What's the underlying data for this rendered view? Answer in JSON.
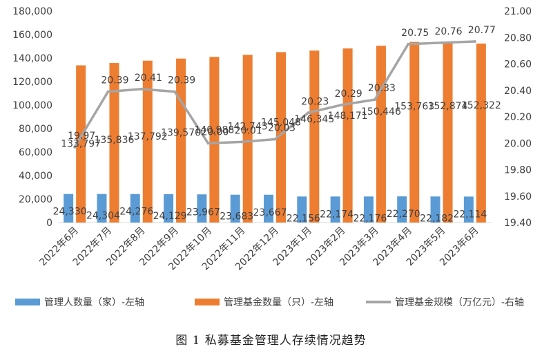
{
  "caption": "图 1  私募基金管理人存续情况趋势",
  "chart_data": {
    "type": "bar",
    "categories": [
      "2022年6月",
      "2022年7月",
      "2022年8月",
      "2022年9月",
      "2022年10月",
      "2022年11月",
      "2022年12月",
      "2023年1月",
      "2023年2月",
      "2023年3月",
      "2023年4月",
      "2023年5月",
      "2023年6月"
    ],
    "series": [
      {
        "name": "管理人数量（家）-左轴",
        "type": "bar",
        "axis": "left",
        "color": "#5B9BD5",
        "values": [
          24330,
          24304,
          24276,
          24129,
          23967,
          23683,
          23667,
          22156,
          22174,
          22176,
          22270,
          22182,
          22114
        ],
        "labels": [
          "24,330",
          "24,304",
          "24,276",
          "24,129",
          "23,967",
          "23,683",
          "23,667",
          "22,156",
          "22,174",
          "22,176",
          "22,270",
          "22,182",
          "22,114"
        ]
      },
      {
        "name": "管理基金数量（只）-左轴",
        "type": "bar",
        "axis": "left",
        "color": "#ED7D31",
        "values": [
          133797,
          135836,
          137792,
          139570,
          140988,
          142743,
          145048,
          146345,
          148171,
          150446,
          153763,
          152874,
          152322
        ],
        "labels": [
          "133,797",
          "135,836",
          "137,792",
          "139,570",
          "140,988",
          "142,743",
          "145,048",
          "146,345",
          "148,171",
          "150,446",
          "153,763",
          "152,874",
          "152,322"
        ]
      },
      {
        "name": "管理基金规模（万亿元）-右轴",
        "type": "line",
        "axis": "right",
        "color": "#A5A5A5",
        "values": [
          19.97,
          20.39,
          20.41,
          20.39,
          20.0,
          20.01,
          20.03,
          20.23,
          20.29,
          20.33,
          20.75,
          20.76,
          20.77
        ],
        "labels": [
          "19.97",
          "20.39",
          "20.41",
          "20.39",
          "20.00",
          "20.01",
          "20.03",
          "20.23",
          "20.29",
          "20.33",
          "20.75",
          "20.76",
          "20.77"
        ]
      }
    ],
    "left_axis": {
      "min": 0,
      "max": 180000,
      "step": 20000,
      "tick_labels": [
        "0",
        "20,000",
        "40,000",
        "60,000",
        "80,000",
        "100,000",
        "120,000",
        "140,000",
        "160,000",
        "180,000"
      ]
    },
    "right_axis": {
      "min": 19.4,
      "max": 21.0,
      "step": 0.2,
      "tick_labels": [
        "19.40",
        "19.60",
        "19.80",
        "20.00",
        "20.20",
        "20.40",
        "20.60",
        "20.80",
        "21.00"
      ]
    },
    "grid": false,
    "legend_position": "bottom"
  }
}
